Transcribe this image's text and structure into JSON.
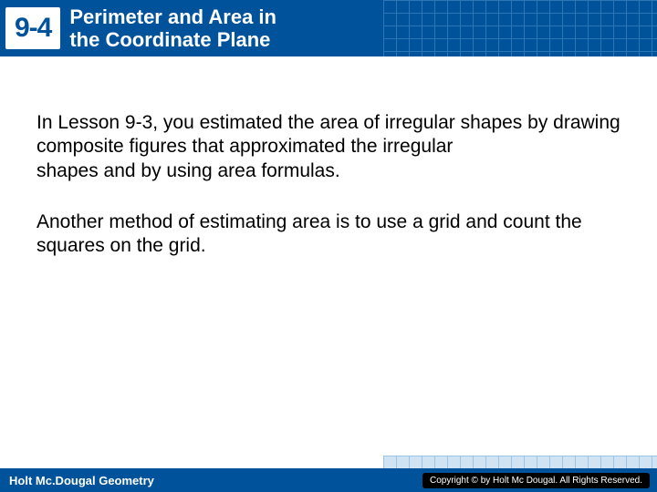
{
  "header": {
    "lesson_number": "9-4",
    "title_line1": "Perimeter and Area in",
    "title_line2": "the Coordinate Plane"
  },
  "content": {
    "para1": "In Lesson 9-3, you estimated the area of irregular shapes by drawing composite figures that approximated the irregular",
    "para1b": "shapes and by using area formulas.",
    "para2": "Another method of estimating area is to use a grid and count the squares on the grid."
  },
  "footer": {
    "left": "Holt Mc.Dougal Geometry",
    "right": "Copyright © by Holt Mc Dougal. All Rights Reserved."
  },
  "colors": {
    "header_bg": "#00529b",
    "text": "#000000",
    "white": "#ffffff"
  }
}
